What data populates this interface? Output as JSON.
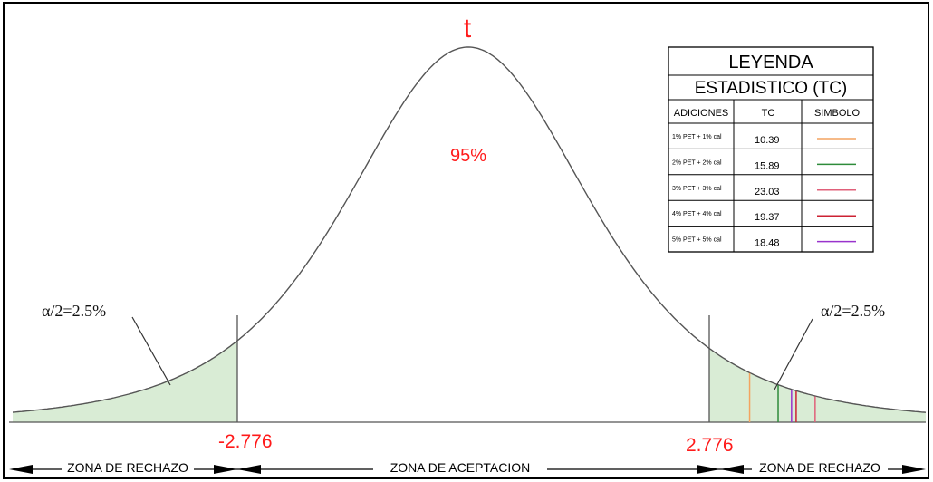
{
  "diagram": {
    "title": "t",
    "center_label": "95%",
    "alpha_left": "α/2=2.5%",
    "alpha_right": "α/2=2.5%",
    "critical_left": "-2.776",
    "critical_right": "2.776",
    "zone_left": "ZONA DE RECHAZO",
    "zone_center": "ZONA DE ACEPTACION",
    "zone_right": "ZONA DE RECHAZO",
    "colors": {
      "critical_text": "#ff1a1a",
      "rejection_fill": "#d9ecd5",
      "curve": "#555555"
    }
  },
  "legend": {
    "title": "LEYENDA",
    "subtitle": "ESTADISTICO (TC)",
    "headers": [
      "ADICIONES",
      "TC",
      "SIMBOLO"
    ],
    "rows": [
      {
        "label": "1% PET + 1% cal",
        "tc": "10.39",
        "color": "#f4a460"
      },
      {
        "label": "2% PET + 2% cal",
        "tc": "15.89",
        "color": "#2e8b3a"
      },
      {
        "label": "3% PET + 3% cal",
        "tc": "23.03",
        "color": "#e0607a"
      },
      {
        "label": "4% PET + 4% cal",
        "tc": "19.37",
        "color": "#cc2233"
      },
      {
        "label": "5% PET + 5% cal",
        "tc": "18.48",
        "color": "#9933cc"
      }
    ]
  }
}
